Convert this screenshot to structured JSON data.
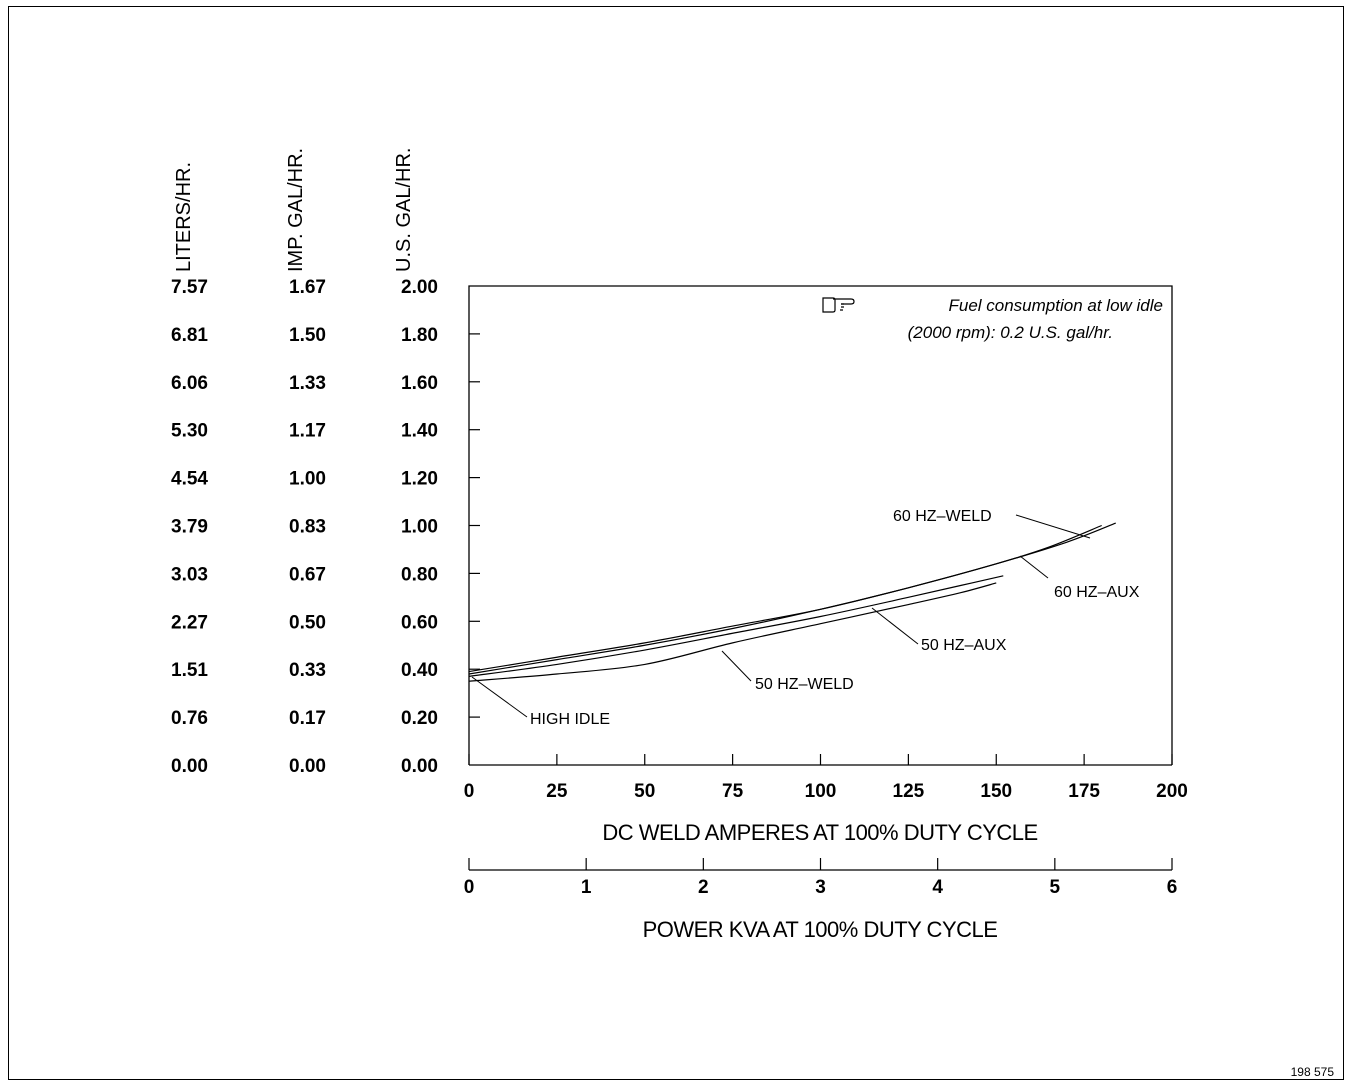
{
  "chart_data": {
    "type": "line",
    "y_axes": [
      {
        "name": "LITERS/HR.",
        "ticks": [
          "7.57",
          "6.81",
          "6.06",
          "5.30",
          "4.54",
          "3.79",
          "3.03",
          "2.27",
          "1.51",
          "0.76",
          "0.00"
        ]
      },
      {
        "name": "IMP. GAL/HR.",
        "ticks": [
          "1.67",
          "1.50",
          "1.33",
          "1.17",
          "1.00",
          "0.83",
          "0.67",
          "0.50",
          "0.33",
          "0.17",
          "0.00"
        ]
      },
      {
        "name": "U.S. GAL/HR.",
        "ticks": [
          "2.00",
          "1.80",
          "1.60",
          "1.40",
          "1.20",
          "1.00",
          "0.80",
          "0.60",
          "0.40",
          "0.20",
          "0.00"
        ]
      }
    ],
    "ylim": [
      0,
      2
    ],
    "x_axis_primary": {
      "label": "DC WELD AMPERES AT 100% DUTY CYCLE",
      "ticks": [
        "0",
        "25",
        "50",
        "75",
        "100",
        "125",
        "150",
        "175",
        "200"
      ],
      "range": [
        0,
        200
      ]
    },
    "x_axis_secondary": {
      "label": "POWER KVA AT 100% DUTY CYCLE",
      "ticks": [
        "0",
        "1",
        "2",
        "3",
        "4",
        "5",
        "6"
      ],
      "range": [
        0,
        6
      ]
    },
    "note": "Fuel consumption at low idle (2000 rpm): 0.2 U.S. gal/hr.",
    "note_lines": [
      "Fuel consumption at low idle",
      "(2000 rpm): 0.2 U.S. gal/hr."
    ],
    "annotations": [
      "HIGH IDLE"
    ],
    "series": [
      {
        "name": "60 HZ–WELD",
        "x": [
          0,
          25,
          50,
          75,
          100,
          125,
          150,
          165,
          180
        ],
        "y": [
          0.39,
          0.45,
          0.51,
          0.58,
          0.65,
          0.74,
          0.84,
          0.91,
          1.0
        ]
      },
      {
        "name": "60 HZ–AUX",
        "x": [
          0,
          25,
          50,
          75,
          100,
          125,
          150,
          170,
          184
        ],
        "y": [
          0.38,
          0.44,
          0.5,
          0.57,
          0.65,
          0.74,
          0.84,
          0.93,
          1.01
        ]
      },
      {
        "name": "50 HZ–AUX",
        "x": [
          0,
          25,
          50,
          75,
          100,
          125,
          140,
          152
        ],
        "y": [
          0.37,
          0.42,
          0.48,
          0.55,
          0.62,
          0.7,
          0.75,
          0.79
        ]
      },
      {
        "name": "50 HZ–WELD",
        "x": [
          0,
          25,
          50,
          75,
          100,
          125,
          140,
          150
        ],
        "y": [
          0.35,
          0.38,
          0.42,
          0.51,
          0.59,
          0.67,
          0.72,
          0.76
        ]
      }
    ]
  },
  "figure_number": "198 575"
}
